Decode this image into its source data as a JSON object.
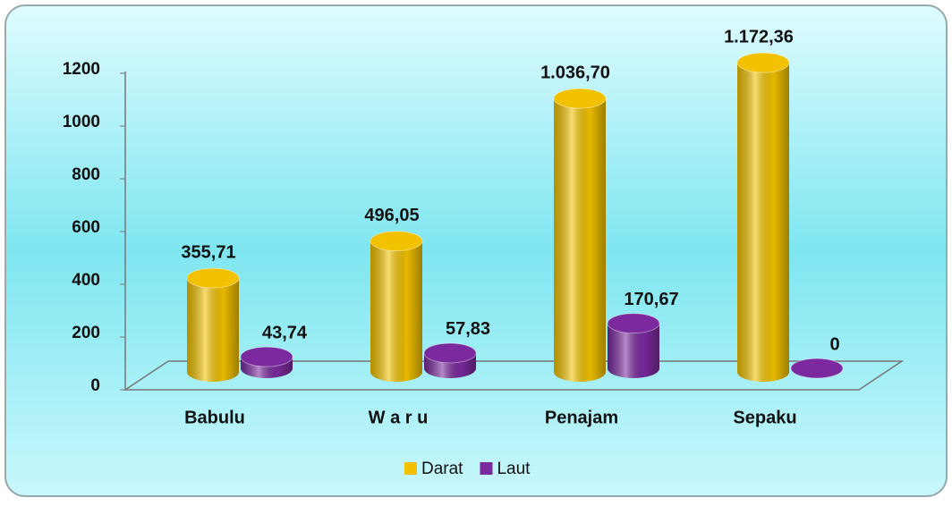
{
  "chart_data": {
    "type": "bar",
    "categories": [
      "Babulu",
      "W a r u",
      "Penajam",
      "Sepaku"
    ],
    "series": [
      {
        "name": "Darat",
        "color": "#f2c200",
        "values": [
          355.71,
          496.05,
          1036.7,
          1172.36
        ],
        "value_labels": [
          "355,71",
          "496,05",
          "1.036,70",
          "1.172,36"
        ]
      },
      {
        "name": "Laut",
        "color": "#7a2a9e",
        "values": [
          43.74,
          57.83,
          170.67,
          0
        ],
        "value_labels": [
          "43,74",
          "57,83",
          "170,67",
          "0"
        ]
      }
    ],
    "ylim": [
      0,
      1200
    ],
    "yticks": [
      0,
      200,
      400,
      600,
      800,
      1000,
      1200
    ],
    "legend": "bottom"
  }
}
